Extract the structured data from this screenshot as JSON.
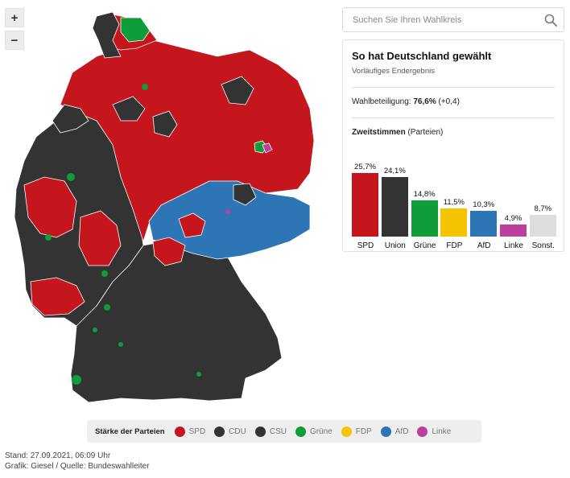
{
  "controls": {
    "zoom_in": "+",
    "zoom_out": "−"
  },
  "search": {
    "placeholder": "Suchen Sie Ihren Wahlkreis"
  },
  "panel": {
    "title": "So hat Deutschland gewählt",
    "subtitle": "Vorläufiges Endergebnis",
    "turnout_label": "Wahlbeteiligung:",
    "turnout_value": "76,6%",
    "turnout_change": "(+0,4)",
    "votes_label_bold": "Zweitstimmen",
    "votes_label_rest": "(Parteien)"
  },
  "chart_data": {
    "type": "bar",
    "categories": [
      "SPD",
      "Union",
      "Grüne",
      "FDP",
      "AfD",
      "Linke",
      "Sonst."
    ],
    "values": [
      25.7,
      24.1,
      14.8,
      11.5,
      10.3,
      4.9,
      8.7
    ],
    "value_labels": [
      "25,7%",
      "24,1%",
      "14,8%",
      "11,5%",
      "10,3%",
      "4,9%",
      "8,7%"
    ],
    "colors": [
      "#c4161c",
      "#333333",
      "#0f9d3a",
      "#f5c400",
      "#2e75b6",
      "#bb3f9c",
      "#dddddd"
    ],
    "ylim": [
      0,
      30
    ]
  },
  "legend": {
    "title": "Stärke der Parteien",
    "items": [
      {
        "label": "SPD",
        "color": "#c4161c"
      },
      {
        "label": "CDU",
        "color": "#333333"
      },
      {
        "label": "CSU",
        "color": "#333333"
      },
      {
        "label": "Grüne",
        "color": "#0f9d3a"
      },
      {
        "label": "FDP",
        "color": "#f5c400"
      },
      {
        "label": "AfD",
        "color": "#2e75b6"
      },
      {
        "label": "Linke",
        "color": "#bb3f9c"
      }
    ]
  },
  "footer": {
    "line1": "Stand: 27.09.2021, 06:09 Uhr",
    "line2": "Grafik: Giesel / Quelle: Bundeswahlleiter"
  },
  "map_colors": {
    "spd": "#c4161c",
    "union": "#333333",
    "gruene": "#0f9d3a",
    "afd": "#2e75b6",
    "linke": "#bb3f9c"
  }
}
